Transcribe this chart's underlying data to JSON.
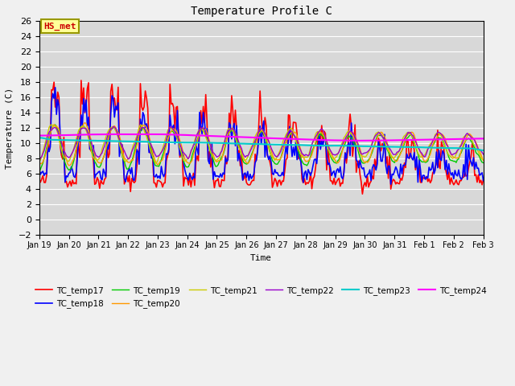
{
  "title": "Temperature Profile C",
  "xlabel": "Time",
  "ylabel": "Temperature (C)",
  "ylim": [
    -2,
    26
  ],
  "annotation": "HS_met",
  "annotation_color": "#cc0000",
  "annotation_bg": "#ffff99",
  "annotation_border": "#999900",
  "series_colors": {
    "TC_temp17": "#ff0000",
    "TC_temp18": "#0000ff",
    "TC_temp19": "#00cc00",
    "TC_temp20": "#ff9900",
    "TC_temp21": "#cccc00",
    "TC_temp22": "#9900cc",
    "TC_temp23": "#00cccc",
    "TC_temp24": "#ff00ff"
  },
  "series_linewidths": {
    "TC_temp17": 1.2,
    "TC_temp18": 1.2,
    "TC_temp19": 1.0,
    "TC_temp20": 1.0,
    "TC_temp21": 1.0,
    "TC_temp22": 1.0,
    "TC_temp23": 1.5,
    "TC_temp24": 1.5
  },
  "plot_bg": "#d8d8d8",
  "fig_bg": "#f0f0f0",
  "grid_color": "#ffffff"
}
